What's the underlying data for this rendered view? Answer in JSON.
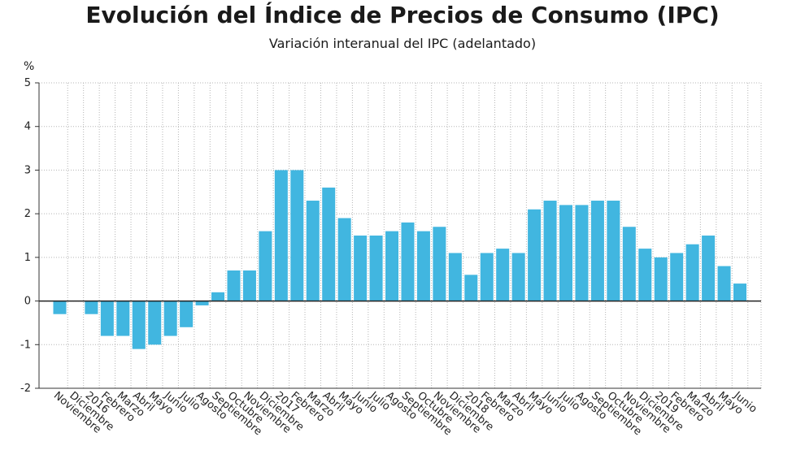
{
  "chart_data": {
    "type": "bar",
    "title": "Evolución del Índice de Precios de Consumo (IPC)",
    "subtitle": "Variación interanual del IPC (adelantado)",
    "unit": "%",
    "xlabel": "",
    "ylabel": "",
    "ylim": [
      -2,
      5
    ],
    "yticks": [
      -2,
      -1,
      0,
      1,
      2,
      3,
      4,
      5
    ],
    "grid": true,
    "bar_color": "#41b6e0",
    "categories": [
      "Noviembre",
      "Diciembre",
      "2016",
      "Febrero",
      "Marzo",
      "Abril",
      "Mayo",
      "Junio",
      "Julio",
      "Agosto",
      "Septiembre",
      "Octubre",
      "Noviembre",
      "Diciembre",
      "2017",
      "Febrero",
      "Marzo",
      "Abril",
      "Mayo",
      "Junio",
      "Julio",
      "Agosto",
      "Septiembre",
      "Octubre",
      "Noviembre",
      "Diciembre",
      "2018",
      "Febrero",
      "Marzo",
      "Abril",
      "Mayo",
      "Junio",
      "Julio",
      "Agosto",
      "Septiembre",
      "Octubre",
      "Noviembre",
      "Diciembre",
      "2019",
      "Febrero",
      "Marzo",
      "Abril",
      "Mayo",
      "Junio"
    ],
    "values": [
      -0.3,
      0.0,
      -0.3,
      -0.8,
      -0.8,
      -1.1,
      -1.0,
      -0.8,
      -0.6,
      -0.1,
      0.2,
      0.7,
      0.7,
      1.6,
      3.0,
      3.0,
      2.3,
      2.6,
      1.9,
      1.5,
      1.5,
      1.6,
      1.8,
      1.6,
      1.7,
      1.1,
      0.6,
      1.1,
      1.2,
      1.1,
      2.1,
      2.3,
      2.2,
      2.2,
      2.3,
      2.3,
      1.7,
      1.2,
      1.0,
      1.1,
      1.3,
      1.5,
      0.8,
      0.4
    ]
  }
}
